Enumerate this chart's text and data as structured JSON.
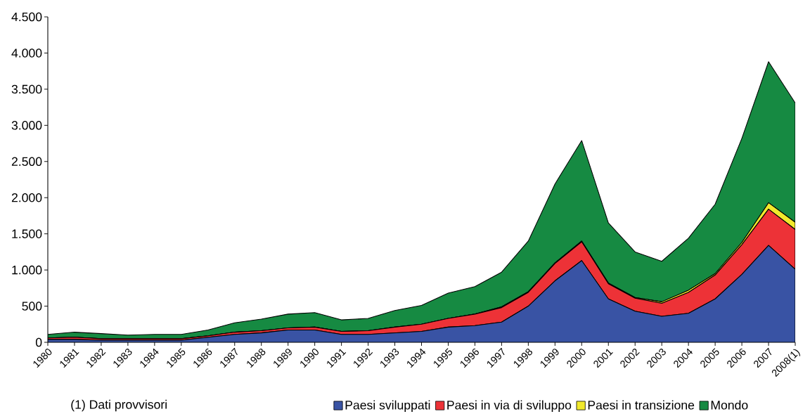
{
  "chart_data": {
    "type": "area",
    "stacked": true,
    "categories": [
      "1980",
      "1981",
      "1982",
      "1983",
      "1984",
      "1985",
      "1986",
      "1987",
      "1988",
      "1989",
      "1990",
      "1991",
      "1992",
      "1993",
      "1994",
      "1995",
      "1996",
      "1997",
      "1998",
      "1999",
      "2000",
      "2001",
      "2002",
      "2003",
      "2004",
      "2005",
      "2006",
      "2007",
      "2008(1)"
    ],
    "series": [
      {
        "name": "Paesi sviluppati",
        "color": "#3953a4",
        "values": [
          40,
          40,
          30,
          30,
          30,
          30,
          70,
          110,
          130,
          170,
          170,
          110,
          110,
          130,
          150,
          210,
          230,
          280,
          500,
          850,
          1130,
          600,
          430,
          360,
          400,
          600,
          940,
          1340,
          1010
        ]
      },
      {
        "name": "Paesi in via di sviluppo",
        "color": "#ed3237",
        "values": [
          20,
          30,
          20,
          20,
          20,
          20,
          20,
          30,
          30,
          30,
          40,
          40,
          50,
          80,
          100,
          120,
          160,
          200,
          190,
          240,
          260,
          210,
          180,
          180,
          290,
          330,
          410,
          500,
          550
        ]
      },
      {
        "name": "Paesi in transizione",
        "color": "#f1e92c",
        "values": [
          0,
          0,
          0,
          0,
          0,
          0,
          0,
          0,
          0,
          0,
          0,
          0,
          0,
          0,
          0,
          0,
          0,
          10,
          10,
          10,
          10,
          10,
          10,
          20,
          30,
          20,
          30,
          90,
          100
        ]
      },
      {
        "name": "Mondo",
        "color": "#168a42",
        "values": [
          50,
          70,
          70,
          50,
          60,
          60,
          80,
          130,
          160,
          190,
          200,
          160,
          170,
          230,
          260,
          350,
          380,
          480,
          700,
          1090,
          1390,
          830,
          630,
          560,
          720,
          960,
          1440,
          1950,
          1650
        ]
      }
    ],
    "ylim": [
      0,
      4500
    ],
    "yticks": [
      0,
      500,
      {
        "value": 1000,
        "label": "1.000"
      },
      {
        "value": 1500,
        "label": "1.500"
      },
      {
        "value": 2000,
        "label": "2.000"
      },
      {
        "value": 2500,
        "label": "2.500"
      },
      {
        "value": 3000,
        "label": "3.000"
      },
      {
        "value": 3500,
        "label": "3.500"
      },
      {
        "value": 4000,
        "label": "4.000"
      },
      {
        "value": 4500,
        "label": "4.500"
      }
    ],
    "legend": "bottom",
    "annotations": [
      "(1) Dati provvisori"
    ]
  }
}
